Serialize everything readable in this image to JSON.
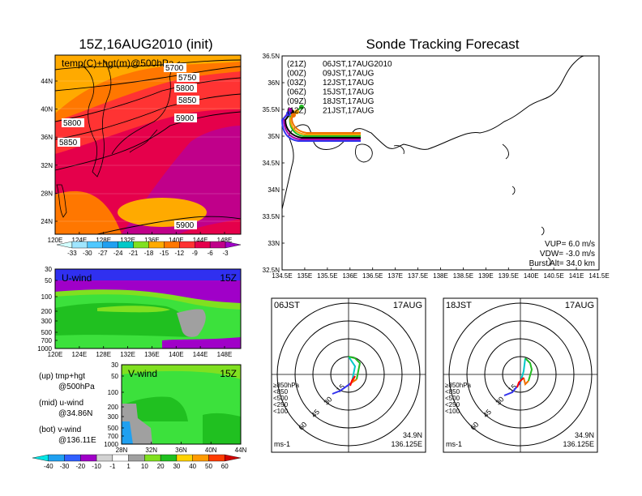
{
  "titles": {
    "left": "15Z,16AUG2010 (init)",
    "right": "Sonde Tracking Forecast"
  },
  "colors": {
    "temp": [
      "#fa0",
      "#ff7700",
      "#f33",
      "#e5004b",
      "#c0008a",
      "#a000c8"
    ],
    "wind": [
      "#20a0f0",
      "#00c8c8",
      "#a0a0a0",
      "#80e020",
      "#20c020",
      "#3ce13c",
      "#a000c8",
      "#3030f0"
    ],
    "track": [
      "#000000",
      "#aa00aa",
      "#3333ee",
      "#22bb22",
      "#f0a000",
      "#f07000"
    ]
  },
  "chart_data": [
    {
      "type": "heatmap",
      "name": "temp-map",
      "title": "temp(C)+hgt(m)@500hPa",
      "x_ticks": [
        "120E",
        "124E",
        "128E",
        "132E",
        "136E",
        "140E",
        "144E",
        "148E"
      ],
      "y_ticks": [
        "44N",
        "40N",
        "36N",
        "32N",
        "28N",
        "24N"
      ],
      "xlim": [
        120,
        150
      ],
      "ylim": [
        22,
        48
      ],
      "contour_labels": [
        "5700",
        "5750",
        "5800",
        "5850",
        "5900",
        "5800",
        "5850",
        "5900"
      ],
      "colorbar": [
        "-33",
        "-30",
        "-27",
        "-24",
        "-21",
        "-18",
        "-15",
        "-12",
        "-9",
        "-6",
        "-3"
      ]
    },
    {
      "type": "heatmap",
      "name": "u-wind",
      "title": "U-wind",
      "time": "15Z",
      "x_ticks": [
        "120E",
        "124E",
        "128E",
        "132E",
        "136E",
        "140E",
        "144E",
        "148E"
      ],
      "y_ticks": [
        "30",
        "50",
        "100",
        "200",
        "300",
        "500",
        "700",
        "1000"
      ]
    },
    {
      "type": "heatmap",
      "name": "v-wind",
      "title": "V-wind",
      "time": "15Z",
      "x_ticks": [
        "28N",
        "32N",
        "36N",
        "40N",
        "44N"
      ],
      "y_ticks": [
        "30",
        "50",
        "100",
        "200",
        "300",
        "500",
        "700",
        "1000"
      ],
      "colorbar": [
        "-40",
        "-30",
        "-20",
        "-10",
        "-1",
        "1",
        "10",
        "20",
        "30",
        "40",
        "50",
        "60"
      ]
    },
    {
      "type": "line",
      "name": "track-map",
      "xlim": [
        134.5,
        141.5
      ],
      "ylim": [
        32.5,
        36.5
      ],
      "x_ticks": [
        "134.5E",
        "135E",
        "135.5E",
        "136E",
        "136.5E",
        "137E",
        "137.5E",
        "138E",
        "138.5E",
        "139E",
        "139.5E",
        "140E",
        "140.5E",
        "141E",
        "141.5E"
      ],
      "y_ticks": [
        "36.5N",
        "36N",
        "35.5N",
        "35N",
        "34.5N",
        "34N",
        "33.5N",
        "33N",
        "32.5N"
      ],
      "legend": [
        {
          "code": "(21Z)",
          "text": "06JST,17AUG2010"
        },
        {
          "code": "(00Z)",
          "text": "09JST,17AUG"
        },
        {
          "code": "(03Z)",
          "text": "12JST,17AUG"
        },
        {
          "code": "(06Z)",
          "text": "15JST,17AUG"
        },
        {
          "code": "(09Z)",
          "text": "18JST,17AUG"
        },
        {
          "code": "(12Z)",
          "text": "21JST,17AUG"
        }
      ],
      "launch": {
        "lon": 136.125,
        "lat": 34.9
      },
      "params": [
        "VUP= 6.0 m/s",
        "VDW= -3.0 m/s",
        "Burst Alt= 34.0 km"
      ]
    },
    {
      "type": "scatter",
      "name": "hodograph-06jst",
      "label": "06JST",
      "date": "17AUG",
      "rings": [
        "15",
        "30",
        "45",
        "60"
      ],
      "levels": [
        "≥850hPa",
        "<850",
        "<500",
        "<250",
        "<100"
      ],
      "unit": "ms-1",
      "lat": "34.9N",
      "lon": "136.125E"
    },
    {
      "type": "scatter",
      "name": "hodograph-18jst",
      "label": "18JST",
      "date": "17AUG",
      "rings": [
        "15",
        "30",
        "45",
        "60"
      ],
      "levels": [
        "≥850hPa",
        "<850",
        "<500",
        "<250",
        "<100"
      ],
      "unit": "ms-1",
      "lat": "34.9N",
      "lon": "136.125E"
    }
  ],
  "notes": [
    {
      "label": "(up) tmp+hgt",
      "sub": "@500hPa"
    },
    {
      "label": "(mid) u-wind",
      "sub": "@34.86N"
    },
    {
      "label": "(bot) v-wind",
      "sub": "@136.11E"
    }
  ]
}
